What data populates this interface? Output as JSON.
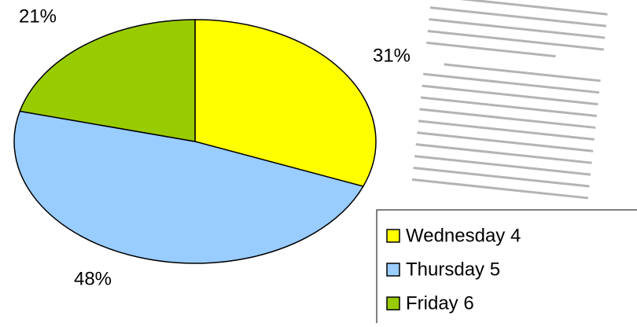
{
  "chart_data": {
    "type": "pie",
    "categories": [
      "Wednesday 4",
      "Thursday 5",
      "Friday 6"
    ],
    "values": [
      31,
      48,
      21
    ],
    "value_labels": [
      "31%",
      "48%",
      "21%"
    ],
    "colors": [
      "#ffff00",
      "#99ccff",
      "#99cc00"
    ],
    "legend": "bottom-right"
  }
}
